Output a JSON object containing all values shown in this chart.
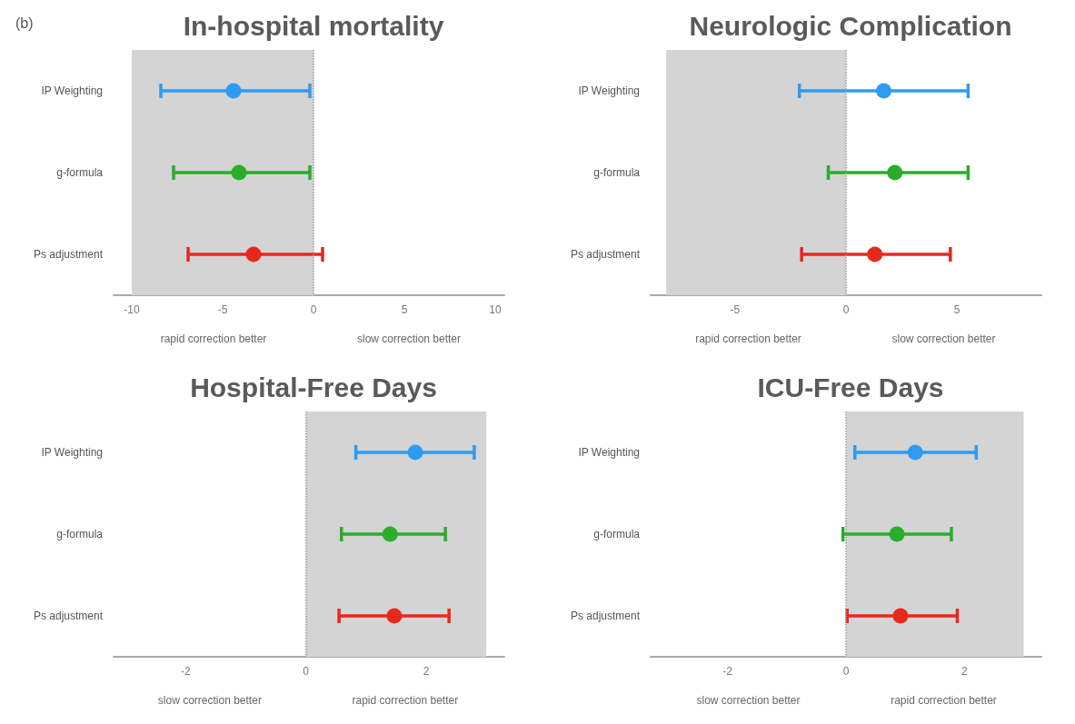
{
  "chart_data": [
    {
      "type": "scatter",
      "orientation": "horizontal",
      "title": "In-hospital mortality",
      "subtitle": "(b)",
      "categories": [
        "IP Weighting",
        "g-formula",
        "Ps adjustment"
      ],
      "marker": "circle",
      "values": [
        -4.4,
        -4.1,
        -3.3
      ],
      "colors": [
        "#2f9bf0",
        "#2aad2a",
        "#e8281e"
      ],
      "errors": [
        [
          -8.4,
          -0.2
        ],
        [
          -7.7,
          -0.2
        ],
        [
          -6.9,
          0.5
        ]
      ],
      "xlim": [
        -11,
        10.5
      ],
      "xticks": [
        -10,
        -5,
        0,
        5,
        10
      ],
      "bands": [
        {
          "axis": "x",
          "from": -10,
          "to": 0,
          "color": "#d4d4d4"
        }
      ],
      "ref_lines": [
        {
          "axis": "x",
          "value": 0,
          "line_style": "dotted",
          "color": "#999999"
        }
      ],
      "annotations": [
        "rapid correction better",
        "slow correction better"
      ]
    },
    {
      "type": "scatter",
      "orientation": "horizontal",
      "title": "Neurologic Complication",
      "categories": [
        "IP Weighting",
        "g-formula",
        "Ps adjustment"
      ],
      "marker": "circle",
      "values": [
        1.7,
        2.2,
        1.3
      ],
      "colors": [
        "#2f9bf0",
        "#2aad2a",
        "#e8281e"
      ],
      "errors": [
        [
          -2.1,
          5.5
        ],
        [
          -0.8,
          5.5
        ],
        [
          -2.0,
          4.7
        ]
      ],
      "xlim": [
        -8.8,
        8.8
      ],
      "xticks": [
        -5,
        0,
        5
      ],
      "bands": [
        {
          "axis": "x",
          "from": -8.1,
          "to": 0,
          "color": "#d4d4d4"
        }
      ],
      "ref_lines": [
        {
          "axis": "x",
          "value": 0,
          "line_style": "dotted",
          "color": "#999999"
        }
      ],
      "annotations": [
        "rapid correction better",
        "slow correction better"
      ]
    },
    {
      "type": "scatter",
      "orientation": "horizontal",
      "title": "Hospital-Free Days",
      "categories": [
        "IP Weighting",
        "g-formula",
        "Ps adjustment"
      ],
      "marker": "circle",
      "values": [
        1.82,
        1.4,
        1.47
      ],
      "colors": [
        "#2f9bf0",
        "#2aad2a",
        "#e8281e"
      ],
      "errors": [
        [
          0.83,
          2.8
        ],
        [
          0.59,
          2.32
        ],
        [
          0.55,
          2.38
        ]
      ],
      "xlim": [
        -3.2,
        3.3
      ],
      "xticks": [
        -2,
        0,
        2
      ],
      "bands": [
        {
          "axis": "x",
          "from": 0,
          "to": 3,
          "color": "#d4d4d4"
        }
      ],
      "ref_lines": [
        {
          "axis": "x",
          "value": 0,
          "line_style": "dotted",
          "color": "#999999"
        }
      ],
      "annotations": [
        "slow correction better",
        "rapid correction better"
      ]
    },
    {
      "type": "scatter",
      "orientation": "horizontal",
      "title": "ICU-Free Days",
      "categories": [
        "IP Weighting",
        "g-formula",
        "Ps adjustment"
      ],
      "marker": "circle",
      "values": [
        1.17,
        0.86,
        0.92
      ],
      "colors": [
        "#2f9bf0",
        "#2aad2a",
        "#e8281e"
      ],
      "errors": [
        [
          0.15,
          2.2
        ],
        [
          -0.05,
          1.78
        ],
        [
          0.02,
          1.88
        ]
      ],
      "xlim": [
        -3.3,
        3.3
      ],
      "xticks": [
        -2,
        0,
        2
      ],
      "bands": [
        {
          "axis": "x",
          "from": 0,
          "to": 3,
          "color": "#d4d4d4"
        }
      ],
      "ref_lines": [
        {
          "axis": "x",
          "value": 0,
          "line_style": "dotted",
          "color": "#999999"
        }
      ],
      "annotations": [
        "slow correction better",
        "rapid correction better"
      ]
    }
  ]
}
